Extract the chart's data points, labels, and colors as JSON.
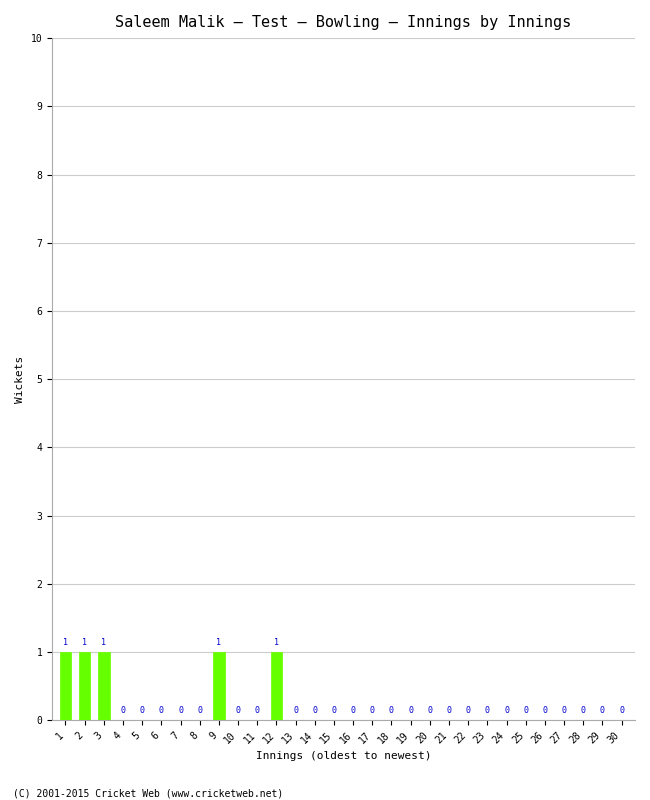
{
  "title": "Saleem Malik – Test – Bowling – Innings by Innings",
  "xlabel": "Innings (oldest to newest)",
  "ylabel": "Wickets",
  "footer": "(C) 2001-2015 Cricket Web (www.cricketweb.net)",
  "innings": [
    1,
    2,
    3,
    4,
    5,
    6,
    7,
    8,
    9,
    10,
    11,
    12,
    13,
    14,
    15,
    16,
    17,
    18,
    19,
    20,
    21,
    22,
    23,
    24,
    25,
    26,
    27,
    28,
    29,
    30
  ],
  "wickets": [
    1,
    1,
    1,
    0,
    0,
    0,
    0,
    0,
    1,
    0,
    0,
    1,
    0,
    0,
    0,
    0,
    0,
    0,
    0,
    0,
    0,
    0,
    0,
    0,
    0,
    0,
    0,
    0,
    0,
    0
  ],
  "bar_color": "#66ff00",
  "bar_edge_color": "#66ff00",
  "label_color": "#0000cc",
  "grid_color": "#cccccc",
  "bg_color": "#ffffff",
  "ylim": [
    0,
    10
  ],
  "yticks": [
    0,
    1,
    2,
    3,
    4,
    5,
    6,
    7,
    8,
    9,
    10
  ],
  "title_fontsize": 11,
  "axis_label_fontsize": 8,
  "tick_fontsize": 7,
  "bar_label_fontsize": 6,
  "footer_fontsize": 7
}
